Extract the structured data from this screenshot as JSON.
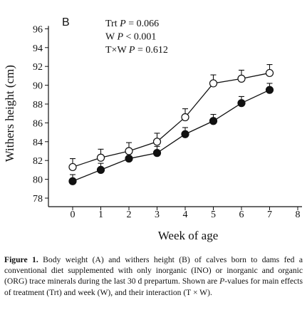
{
  "chart_data": {
    "type": "line",
    "panel_label": "B",
    "xlabel": "Week of age",
    "ylabel": "Withers height (cm)",
    "x": [
      0,
      1,
      2,
      3,
      4,
      5,
      6,
      7
    ],
    "xlim": [
      0,
      8
    ],
    "xticks": [
      "0",
      "1",
      "2",
      "3",
      "4",
      "5",
      "6",
      "7",
      "8"
    ],
    "ylim": [
      78,
      96
    ],
    "yticks": [
      "78",
      "80",
      "82",
      "84",
      "86",
      "88",
      "90",
      "92",
      "94",
      "96"
    ],
    "grid": false,
    "series": [
      {
        "marker": "open-circle",
        "values": [
          81.3,
          82.3,
          83.0,
          84.0,
          86.6,
          90.2,
          90.7,
          91.3
        ],
        "errors": [
          0.9,
          0.9,
          0.9,
          0.9,
          0.9,
          0.9,
          0.9,
          0.9
        ]
      },
      {
        "marker": "filled-circle",
        "values": [
          79.8,
          81.0,
          82.2,
          82.8,
          84.8,
          86.2,
          88.1,
          89.5
        ],
        "errors": [
          0.7,
          0.7,
          0.7,
          0.7,
          0.7,
          0.7,
          0.7,
          0.7
        ]
      }
    ],
    "annotations": [
      {
        "prefix": "Trt ",
        "italic": "P",
        "suffix": " = 0.066"
      },
      {
        "prefix": "W ",
        "italic": "P",
        "suffix": " < 0.001"
      },
      {
        "prefix": "T×W ",
        "italic": "P",
        "suffix": " = 0.612"
      }
    ],
    "colors": {
      "line": "#111111",
      "open_fill": "#ffffff",
      "filled_fill": "#111111"
    }
  },
  "caption": {
    "figure_label": "Figure 1.",
    "text_before_p": " Body weight (A) and withers height (B) of calves born to dams fed a conventional diet supplemented with only inorganic (INO) or inorganic and organic (ORG) trace minerals during the last 30 d prepartum. Shown are ",
    "p_italic": "P",
    "text_after_p": "-values for main effects of treatment (Trt) and week (W), and their interaction (T × W)."
  }
}
